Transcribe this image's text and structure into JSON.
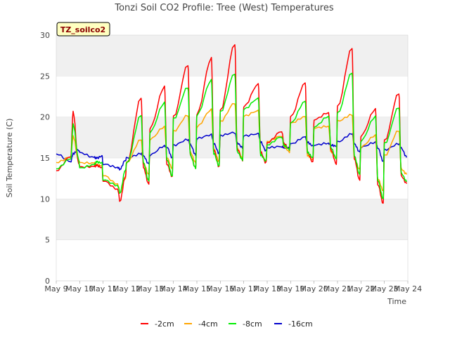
{
  "chart_data": {
    "type": "line",
    "title": "Tonzi Soil CO2 Profile: Tree (West) Temperatures",
    "xlabel": "Time",
    "ylabel": "Soil Temperature (C)",
    "badge": "TZ_soilco2",
    "ylim": [
      0,
      30
    ],
    "yticks": [
      0,
      5,
      10,
      15,
      20,
      25,
      30
    ],
    "xlim": [
      "May 9",
      "May 24"
    ],
    "xtick_labels": [
      "May 9",
      "May 10",
      "May 11",
      "May 12",
      "May 13",
      "May 14",
      "May 15",
      "May 16",
      "May 17",
      "May 18",
      "May 19",
      "May 20",
      "May 21",
      "May 22",
      "May 23",
      "May 24"
    ],
    "grid": "horizontal bands",
    "legend_position": "bottom",
    "x_unit": "days since May 9 00:00",
    "daily_samples": [
      {
        "day": "May 9",
        "series": {
          "-2cm": [
            13.5,
            15.0,
            20.4,
            14.5
          ],
          "-4cm": [
            14.2,
            15.0,
            17.8,
            15.0
          ],
          "-8cm": [
            13.9,
            15.1,
            19.0,
            14.7
          ],
          "-16cm": [
            15.5,
            14.8,
            15.7,
            15.9
          ]
        }
      },
      {
        "day": "May 10",
        "series": {
          "-2cm": [
            13.8,
            13.7,
            14.0,
            14.0
          ],
          "-4cm": [
            14.2,
            14.4,
            14.4,
            14.2
          ],
          "-8cm": [
            14.0,
            14.2,
            14.3,
            14.2
          ],
          "-16cm": [
            15.8,
            15.3,
            15.0,
            15.0
          ]
        }
      },
      {
        "day": "May 11",
        "series": {
          "-2cm": [
            12.0,
            11.0,
            9.8,
            13.0
          ],
          "-4cm": [
            12.8,
            12.0,
            11.0,
            12.5
          ],
          "-8cm": [
            12.5,
            11.5,
            10.5,
            13.5
          ],
          "-16cm": [
            14.5,
            14.0,
            13.5,
            14.5
          ]
        }
      },
      {
        "day": "May 12",
        "series": {
          "-2cm": [
            14.0,
            22.3,
            14.0,
            12.0
          ],
          "-4cm": [
            14.5,
            17.5,
            14.5,
            12.8
          ],
          "-8cm": [
            14.3,
            20.0,
            14.2,
            12.3
          ],
          "-16cm": [
            15.2,
            15.5,
            15.0,
            14.1
          ]
        }
      },
      {
        "day": "May 13",
        "series": {
          "-2cm": [
            18.5,
            23.8,
            14.5,
            12.8
          ],
          "-4cm": [
            17.5,
            19.0,
            15.0,
            13.5
          ],
          "-8cm": [
            18.0,
            21.5,
            14.8,
            13.0
          ],
          "-16cm": [
            15.5,
            16.3,
            16.1,
            15.0
          ]
        }
      },
      {
        "day": "May 14",
        "series": {
          "-2cm": [
            20.0,
            26.6,
            15.5,
            13.7
          ],
          "-4cm": [
            18.5,
            20.3,
            15.5,
            14.2
          ],
          "-8cm": [
            19.5,
            23.5,
            15.5,
            14.0
          ],
          "-16cm": [
            16.5,
            17.0,
            16.5,
            15.5
          ]
        }
      },
      {
        "day": "May 15",
        "series": {
          "-2cm": [
            20.5,
            27.4,
            16.0,
            13.7
          ],
          "-4cm": [
            19.0,
            20.8,
            15.8,
            14.5
          ],
          "-8cm": [
            20.0,
            24.5,
            15.8,
            14.2
          ],
          "-16cm": [
            17.2,
            17.6,
            16.8,
            15.8
          ]
        }
      },
      {
        "day": "May 16",
        "series": {
          "-2cm": [
            21.0,
            29.1,
            16.0,
            14.5
          ],
          "-4cm": [
            19.5,
            21.5,
            16.0,
            15.0
          ],
          "-8cm": [
            20.5,
            25.5,
            16.0,
            14.8
          ],
          "-16cm": [
            17.5,
            18.0,
            17.0,
            16.5
          ]
        }
      },
      {
        "day": "May 17",
        "series": {
          "-2cm": [
            21.5,
            24.0,
            15.5,
            14.2
          ],
          "-4cm": [
            20.0,
            20.5,
            15.5,
            14.8
          ],
          "-8cm": [
            21.0,
            22.5,
            15.5,
            14.5
          ],
          "-16cm": [
            17.5,
            18.0,
            17.2,
            16.0
          ]
        }
      },
      {
        "day": "May 18",
        "series": {
          "-2cm": [
            17.0,
            18.1,
            16.5,
            16.0
          ],
          "-4cm": [
            16.8,
            17.5,
            16.5,
            16.0
          ],
          "-8cm": [
            16.8,
            17.8,
            16.5,
            15.8
          ],
          "-16cm": [
            16.2,
            16.6,
            16.5,
            16.2
          ]
        }
      },
      {
        "day": "May 19",
        "series": {
          "-2cm": [
            20.0,
            23.9,
            15.5,
            14.6
          ],
          "-4cm": [
            19.0,
            20.0,
            15.5,
            15.0
          ],
          "-8cm": [
            19.5,
            22.0,
            15.5,
            14.8
          ],
          "-16cm": [
            16.8,
            17.8,
            17.0,
            16.3
          ]
        }
      },
      {
        "day": "May 20",
        "series": {
          "-2cm": [
            19.5,
            20.3,
            16.0,
            14.5
          ],
          "-4cm": [
            18.5,
            19.0,
            16.0,
            15.0
          ],
          "-8cm": [
            19.0,
            20.0,
            16.0,
            14.8
          ],
          "-16cm": [
            16.8,
            17.0,
            16.5,
            16.2
          ]
        }
      },
      {
        "day": "May 21",
        "series": {
          "-2cm": [
            21.0,
            28.3,
            15.0,
            12.5
          ],
          "-4cm": [
            19.5,
            20.5,
            15.0,
            13.5
          ],
          "-8cm": [
            20.5,
            25.2,
            15.0,
            13.0
          ],
          "-16cm": [
            17.2,
            18.0,
            16.5,
            15.5
          ]
        }
      },
      {
        "day": "May 22",
        "series": {
          "-2cm": [
            17.5,
            21.0,
            12.0,
            9.6
          ],
          "-4cm": [
            16.5,
            18.0,
            12.5,
            10.8
          ],
          "-8cm": [
            17.0,
            19.8,
            12.2,
            10.2
          ],
          "-16cm": [
            16.5,
            16.8,
            16.0,
            14.5
          ]
        }
      },
      {
        "day": "May 23",
        "series": {
          "-2cm": [
            17.0,
            23.1,
            13.0,
            11.9
          ],
          "-4cm": [
            15.5,
            18.5,
            13.5,
            12.8
          ],
          "-8cm": [
            16.5,
            21.0,
            13.2,
            12.4
          ],
          "-16cm": [
            16.0,
            16.5,
            16.0,
            15.2
          ]
        }
      }
    ],
    "series": [
      {
        "name": "-2cm",
        "color": "#ff0000"
      },
      {
        "name": "-4cm",
        "color": "#ffa500"
      },
      {
        "name": "-8cm",
        "color": "#00ee00"
      },
      {
        "name": "-16cm",
        "color": "#0000cc"
      }
    ]
  }
}
